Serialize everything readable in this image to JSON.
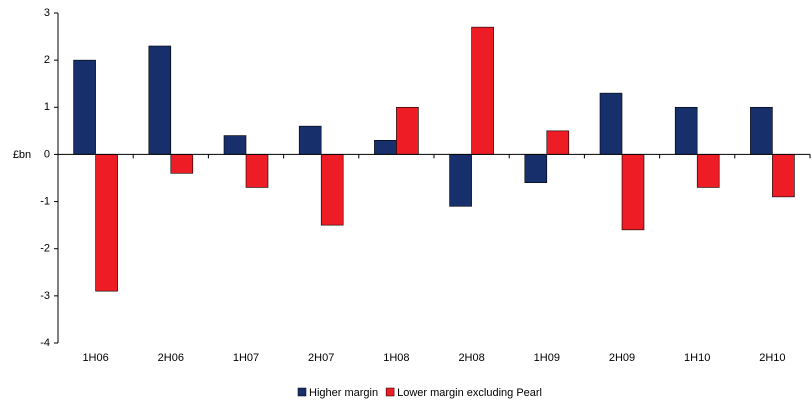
{
  "chart_data": {
    "type": "bar",
    "y_label": "£bn",
    "categories": [
      "1H06",
      "2H06",
      "1H07",
      "2H07",
      "1H08",
      "2H08",
      "1H09",
      "2H09",
      "1H10",
      "2H10"
    ],
    "series": [
      {
        "name": "Higher margin",
        "color": "#17306b",
        "values": [
          2,
          2.3,
          0.4,
          0.6,
          0.3,
          -1.1,
          -0.6,
          1.3,
          1,
          1
        ]
      },
      {
        "name": "Lower margin excluding Pearl",
        "color": "#ee1c25",
        "values": [
          -2.9,
          -0.4,
          -0.7,
          -1.5,
          1,
          2.7,
          0.5,
          -1.6,
          -0.7,
          -0.9
        ]
      }
    ],
    "ylim": [
      -4,
      3
    ],
    "yticks": [
      -4,
      -3,
      -2,
      -1,
      0,
      1,
      2,
      3
    ]
  }
}
